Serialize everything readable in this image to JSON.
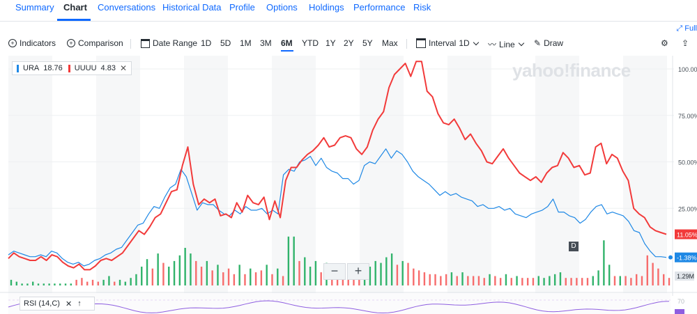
{
  "tabs": [
    "Summary",
    "Chart",
    "Conversations",
    "Historical Data",
    "Profile",
    "Options",
    "Holdings",
    "Performance",
    "Risk"
  ],
  "active_tab": "Chart",
  "fullscreen_label": "Full",
  "toolbar": {
    "indicators": "Indicators",
    "comparison": "Comparison",
    "date_range": "Date Range",
    "ranges": [
      "1D",
      "5D",
      "1M",
      "3M",
      "6M",
      "YTD",
      "1Y",
      "2Y",
      "5Y",
      "Max"
    ],
    "selected_range": "6M",
    "interval_label": "Interval",
    "interval_value": "1D",
    "line_label": "Line",
    "draw_label": "Draw"
  },
  "legend": [
    {
      "symbol": "URA",
      "value": "18.76",
      "color": "#1e88e5"
    },
    {
      "symbol": "UUUU",
      "value": "4.83",
      "color": "#f23a3a",
      "removable": true
    }
  ],
  "watermark": "yahoo!finance",
  "rsi_label": "RSI (14,C)",
  "rsi_level": "70",
  "d_badge": "D",
  "chart_data": {
    "type": "line",
    "y_unit": "percent change",
    "ylim": [
      -10,
      105
    ],
    "yticks": [
      "100.00%",
      "75.00%",
      "50.00%",
      "25.00%"
    ],
    "ytick_values": [
      100,
      75,
      50,
      25
    ],
    "last_labels": [
      {
        "series": "UUUU",
        "text": "11.05%",
        "value": 11.05,
        "color": "#f23a3a"
      },
      {
        "series": "URA",
        "text": "-1.38%",
        "value": -1.38,
        "color": "#1e88e5"
      }
    ],
    "volume_label": "1.29M",
    "series": [
      {
        "name": "URA",
        "color": "#1e88e5",
        "values": [
          0,
          2,
          1,
          0,
          -1,
          -1,
          0,
          -1,
          2,
          1,
          -2,
          -4,
          -5,
          -4,
          -6,
          -5,
          -3,
          -2,
          0,
          1,
          3,
          4,
          8,
          12,
          16,
          17,
          22,
          26,
          25,
          31,
          36,
          38,
          46,
          42,
          33,
          24,
          28,
          27,
          27,
          24,
          22,
          21,
          24,
          22,
          26,
          24,
          24,
          25,
          22,
          24,
          22,
          43,
          46,
          45,
          50,
          51,
          53,
          48,
          52,
          47,
          45,
          44,
          41,
          41,
          38,
          40,
          48,
          50,
          49,
          53,
          57,
          52,
          56,
          54,
          50,
          45,
          42,
          40,
          38,
          35,
          32,
          34,
          32,
          33,
          31,
          30,
          29,
          26,
          27,
          25,
          25,
          26,
          24,
          25,
          22,
          21,
          20,
          22,
          23,
          24,
          26,
          30,
          23,
          23,
          21,
          20,
          17,
          19,
          23,
          26,
          27,
          22,
          23,
          22,
          21,
          18,
          13,
          12,
          6,
          2,
          -1,
          -1,
          -1.38
        ]
      },
      {
        "name": "UUUU",
        "color": "#f23a3a",
        "values": [
          -2,
          1,
          -1,
          -2,
          -3,
          -3,
          -1,
          -3,
          0,
          -1,
          -4,
          -6,
          -7,
          -5,
          -8,
          -8,
          -6,
          -3,
          -2,
          -3,
          -1,
          1,
          5,
          9,
          13,
          11,
          15,
          20,
          22,
          28,
          34,
          35,
          48,
          58,
          38,
          27,
          30,
          28,
          30,
          21,
          22,
          20,
          28,
          23,
          32,
          28,
          27,
          31,
          19,
          29,
          20,
          40,
          47,
          47,
          51,
          54,
          56,
          59,
          63,
          58,
          59,
          63,
          64,
          63,
          57,
          54,
          58,
          67,
          73,
          77,
          90,
          97,
          100,
          103,
          96,
          104,
          104,
          88,
          85,
          76,
          71,
          70,
          73,
          68,
          62,
          65,
          60,
          56,
          50,
          49,
          53,
          57,
          52,
          48,
          44,
          42,
          40,
          42,
          39,
          44,
          47,
          48,
          55,
          52,
          47,
          48,
          43,
          44,
          58,
          60,
          49,
          54,
          52,
          45,
          40,
          25,
          22,
          20,
          15,
          13,
          12,
          11.05
        ]
      }
    ],
    "volume": [
      {
        "v": 0.3,
        "s": "g"
      },
      {
        "v": 0.2,
        "s": "g"
      },
      {
        "v": 0.1,
        "s": "g"
      },
      {
        "v": 0.1,
        "s": "g"
      },
      {
        "v": 0.2,
        "s": "g"
      },
      {
        "v": 0.1,
        "s": "g"
      },
      {
        "v": 0.1,
        "s": "g"
      },
      {
        "v": 0.1,
        "s": "g"
      },
      {
        "v": 0.1,
        "s": "g"
      },
      {
        "v": 0.1,
        "s": "g"
      },
      {
        "v": 0.1,
        "s": "g"
      },
      {
        "v": 0.1,
        "s": "g"
      },
      {
        "v": 0.3,
        "s": "r"
      },
      {
        "v": 0.4,
        "s": "r"
      },
      {
        "v": 0.2,
        "s": "r"
      },
      {
        "v": 0.3,
        "s": "r"
      },
      {
        "v": 0.2,
        "s": "r"
      },
      {
        "v": 0.3,
        "s": "g"
      },
      {
        "v": 0.5,
        "s": "g"
      },
      {
        "v": 0.2,
        "s": "r"
      },
      {
        "v": 0.3,
        "s": "g"
      },
      {
        "v": 0.2,
        "s": "g"
      },
      {
        "v": 0.4,
        "s": "g"
      },
      {
        "v": 0.6,
        "s": "g"
      },
      {
        "v": 1.0,
        "s": "g"
      },
      {
        "v": 1.4,
        "s": "g"
      },
      {
        "v": 0.9,
        "s": "r"
      },
      {
        "v": 1.7,
        "s": "g"
      },
      {
        "v": 1.2,
        "s": "r"
      },
      {
        "v": 1.0,
        "s": "g"
      },
      {
        "v": 1.3,
        "s": "g"
      },
      {
        "v": 1.6,
        "s": "g"
      },
      {
        "v": 2.0,
        "s": "g"
      },
      {
        "v": 1.7,
        "s": "g"
      },
      {
        "v": 1.3,
        "s": "r"
      },
      {
        "v": 1.0,
        "s": "r"
      },
      {
        "v": 1.3,
        "s": "g"
      },
      {
        "v": 0.8,
        "s": "r"
      },
      {
        "v": 1.1,
        "s": "g"
      },
      {
        "v": 0.7,
        "s": "r"
      },
      {
        "v": 0.9,
        "s": "r"
      },
      {
        "v": 0.6,
        "s": "r"
      },
      {
        "v": 1.1,
        "s": "g"
      },
      {
        "v": 0.6,
        "s": "r"
      },
      {
        "v": 0.9,
        "s": "g"
      },
      {
        "v": 0.7,
        "s": "r"
      },
      {
        "v": 0.8,
        "s": "r"
      },
      {
        "v": 1.1,
        "s": "g"
      },
      {
        "v": 0.6,
        "s": "r"
      },
      {
        "v": 0.9,
        "s": "g"
      },
      {
        "v": 0.5,
        "s": "r"
      },
      {
        "v": 2.6,
        "s": "g"
      },
      {
        "v": 2.6,
        "s": "g"
      },
      {
        "v": 1.3,
        "s": "r"
      },
      {
        "v": 1.5,
        "s": "g"
      },
      {
        "v": 1.0,
        "s": "g"
      },
      {
        "v": 1.3,
        "s": "g"
      },
      {
        "v": 0.7,
        "s": "r"
      },
      {
        "v": 1.2,
        "s": "g"
      },
      {
        "v": 0.9,
        "s": "r"
      },
      {
        "v": 0.7,
        "s": "r"
      },
      {
        "v": 0.8,
        "s": "r"
      },
      {
        "v": 0.6,
        "s": "r"
      },
      {
        "v": 0.7,
        "s": "r"
      },
      {
        "v": 0.6,
        "s": "r"
      },
      {
        "v": 0.7,
        "s": "g"
      },
      {
        "v": 1.0,
        "s": "g"
      },
      {
        "v": 1.3,
        "s": "g"
      },
      {
        "v": 1.2,
        "s": "g"
      },
      {
        "v": 1.5,
        "s": "g"
      },
      {
        "v": 1.7,
        "s": "g"
      },
      {
        "v": 1.1,
        "s": "r"
      },
      {
        "v": 1.3,
        "s": "g"
      },
      {
        "v": 1.2,
        "s": "r"
      },
      {
        "v": 0.9,
        "s": "r"
      },
      {
        "v": 0.8,
        "s": "r"
      },
      {
        "v": 0.7,
        "s": "r"
      },
      {
        "v": 0.6,
        "s": "r"
      },
      {
        "v": 0.6,
        "s": "r"
      },
      {
        "v": 0.5,
        "s": "r"
      },
      {
        "v": 0.6,
        "s": "r"
      },
      {
        "v": 0.7,
        "s": "g"
      },
      {
        "v": 0.5,
        "s": "r"
      },
      {
        "v": 0.7,
        "s": "g"
      },
      {
        "v": 0.5,
        "s": "r"
      },
      {
        "v": 0.5,
        "s": "r"
      },
      {
        "v": 0.5,
        "s": "r"
      },
      {
        "v": 0.4,
        "s": "r"
      },
      {
        "v": 0.6,
        "s": "g"
      },
      {
        "v": 0.5,
        "s": "r"
      },
      {
        "v": 0.4,
        "s": "r"
      },
      {
        "v": 0.6,
        "s": "g"
      },
      {
        "v": 0.4,
        "s": "r"
      },
      {
        "v": 0.5,
        "s": "g"
      },
      {
        "v": 0.4,
        "s": "r"
      },
      {
        "v": 0.4,
        "s": "r"
      },
      {
        "v": 0.4,
        "s": "r"
      },
      {
        "v": 0.5,
        "s": "g"
      },
      {
        "v": 0.4,
        "s": "g"
      },
      {
        "v": 0.5,
        "s": "g"
      },
      {
        "v": 0.6,
        "s": "g"
      },
      {
        "v": 0.7,
        "s": "g"
      },
      {
        "v": 0.4,
        "s": "r"
      },
      {
        "v": 0.4,
        "s": "r"
      },
      {
        "v": 0.4,
        "s": "r"
      },
      {
        "v": 0.4,
        "s": "r"
      },
      {
        "v": 0.4,
        "s": "r"
      },
      {
        "v": 0.5,
        "s": "g"
      },
      {
        "v": 0.8,
        "s": "g"
      },
      {
        "v": 2.4,
        "s": "g"
      },
      {
        "v": 1.1,
        "s": "g"
      },
      {
        "v": 0.5,
        "s": "r"
      },
      {
        "v": 0.5,
        "s": "g"
      },
      {
        "v": 0.5,
        "s": "r"
      },
      {
        "v": 0.4,
        "s": "r"
      },
      {
        "v": 0.6,
        "s": "r"
      },
      {
        "v": 0.5,
        "s": "r"
      },
      {
        "v": 1.6,
        "s": "r"
      },
      {
        "v": 1.2,
        "s": "r"
      },
      {
        "v": 0.9,
        "s": "r"
      },
      {
        "v": 0.6,
        "s": "r"
      },
      {
        "v": 0.4,
        "s": "r"
      }
    ]
  }
}
